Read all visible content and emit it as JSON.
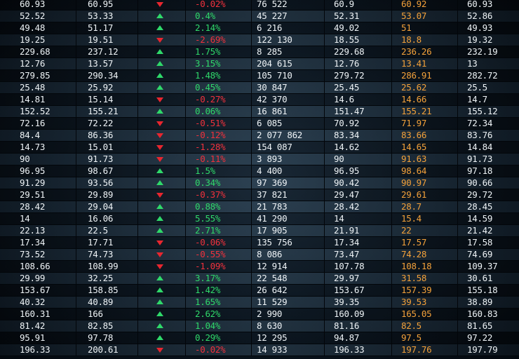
{
  "rows": [
    {
      "c1": "60.93",
      "c2": "60.95",
      "dir": "down",
      "chg": "-0.02%",
      "vol": "76 522",
      "c6": "60.9",
      "c7": "60.92",
      "c8": "60.93"
    },
    {
      "c1": "52.52",
      "c2": "53.33",
      "dir": "up",
      "chg": "0.4%",
      "vol": "45 227",
      "c6": "52.31",
      "c7": "53.07",
      "c8": "52.86"
    },
    {
      "c1": "49.48",
      "c2": "51.17",
      "dir": "up",
      "chg": "2.14%",
      "vol": "6 216",
      "c6": "49.02",
      "c7": "51",
      "c8": "49.93"
    },
    {
      "c1": "19.25",
      "c2": "19.51",
      "dir": "down",
      "chg": "-2.69%",
      "vol": "122 130",
      "c6": "18.55",
      "c7": "18.8",
      "c8": "19.32"
    },
    {
      "c1": "229.68",
      "c2": "237.12",
      "dir": "up",
      "chg": "1.75%",
      "vol": "8 285",
      "c6": "229.68",
      "c7": "236.26",
      "c8": "232.19"
    },
    {
      "c1": "12.76",
      "c2": "13.57",
      "dir": "up",
      "chg": "3.15%",
      "vol": "204 615",
      "c6": "12.76",
      "c7": "13.41",
      "c8": "13"
    },
    {
      "c1": "279.85",
      "c2": "290.34",
      "dir": "up",
      "chg": "1.48%",
      "vol": "105 710",
      "c6": "279.72",
      "c7": "286.91",
      "c8": "282.72"
    },
    {
      "c1": "25.48",
      "c2": "25.92",
      "dir": "up",
      "chg": "0.45%",
      "vol": "30 847",
      "c6": "25.45",
      "c7": "25.62",
      "c8": "25.5"
    },
    {
      "c1": "14.81",
      "c2": "15.14",
      "dir": "down",
      "chg": "-0.27%",
      "vol": "42 370",
      "c6": "14.6",
      "c7": "14.66",
      "c8": "14.7"
    },
    {
      "c1": "152.52",
      "c2": "155.21",
      "dir": "up",
      "chg": "0.06%",
      "vol": "16 861",
      "c6": "151.47",
      "c7": "155.21",
      "c8": "155.12"
    },
    {
      "c1": "72.16",
      "c2": "72.22",
      "dir": "down",
      "chg": "-0.51%",
      "vol": "6 085",
      "c6": "70.92",
      "c7": "71.97",
      "c8": "72.34"
    },
    {
      "c1": "84.4",
      "c2": "86.36",
      "dir": "down",
      "chg": "-0.12%",
      "vol": "2 077 862",
      "c6": "83.34",
      "c7": "83.66",
      "c8": "83.76"
    },
    {
      "c1": "14.73",
      "c2": "15.01",
      "dir": "down",
      "chg": "-1.28%",
      "vol": "154 087",
      "c6": "14.62",
      "c7": "14.65",
      "c8": "14.84"
    },
    {
      "c1": "90",
      "c2": "91.73",
      "dir": "down",
      "chg": "-0.11%",
      "vol": "3 893",
      "c6": "90",
      "c7": "91.63",
      "c8": "91.73"
    },
    {
      "c1": "96.95",
      "c2": "98.67",
      "dir": "up",
      "chg": "1.5%",
      "vol": "4 400",
      "c6": "96.95",
      "c7": "98.64",
      "c8": "97.18"
    },
    {
      "c1": "91.29",
      "c2": "93.56",
      "dir": "up",
      "chg": "0.34%",
      "vol": "97 369",
      "c6": "90.42",
      "c7": "90.97",
      "c8": "90.66"
    },
    {
      "c1": "29.51",
      "c2": "29.89",
      "dir": "down",
      "chg": "-0.37%",
      "vol": "37 821",
      "c6": "29.47",
      "c7": "29.61",
      "c8": "29.72"
    },
    {
      "c1": "28.42",
      "c2": "29.04",
      "dir": "up",
      "chg": "0.88%",
      "vol": "21 783",
      "c6": "28.42",
      "c7": "28.7",
      "c8": "28.45"
    },
    {
      "c1": "14",
      "c2": "16.06",
      "dir": "up",
      "chg": "5.55%",
      "vol": "41 290",
      "c6": "14",
      "c7": "15.4",
      "c8": "14.59"
    },
    {
      "c1": "22.13",
      "c2": "22.5",
      "dir": "up",
      "chg": "2.71%",
      "vol": "17 905",
      "c6": "21.91",
      "c7": "22",
      "c8": "21.42"
    },
    {
      "c1": "17.34",
      "c2": "17.71",
      "dir": "down",
      "chg": "-0.06%",
      "vol": "135 756",
      "c6": "17.34",
      "c7": "17.57",
      "c8": "17.58"
    },
    {
      "c1": "73.52",
      "c2": "74.73",
      "dir": "down",
      "chg": "-0.55%",
      "vol": "8 086",
      "c6": "73.47",
      "c7": "74.28",
      "c8": "74.69"
    },
    {
      "c1": "108.66",
      "c2": "108.99",
      "dir": "down",
      "chg": "-1.09%",
      "vol": "12 914",
      "c6": "107.78",
      "c7": "108.18",
      "c8": "109.37"
    },
    {
      "c1": "29.99",
      "c2": "32.25",
      "dir": "up",
      "chg": "3.17%",
      "vol": "22 548",
      "c6": "29.97",
      "c7": "31.58",
      "c8": "30.61"
    },
    {
      "c1": "153.67",
      "c2": "158.85",
      "dir": "up",
      "chg": "1.42%",
      "vol": "26 642",
      "c6": "153.67",
      "c7": "157.39",
      "c8": "155.18"
    },
    {
      "c1": "40.32",
      "c2": "40.89",
      "dir": "up",
      "chg": "1.65%",
      "vol": "11 529",
      "c6": "39.35",
      "c7": "39.53",
      "c8": "38.89"
    },
    {
      "c1": "160.31",
      "c2": "166",
      "dir": "up",
      "chg": "2.62%",
      "vol": "2 990",
      "c6": "160.09",
      "c7": "165.05",
      "c8": "160.83"
    },
    {
      "c1": "81.42",
      "c2": "82.85",
      "dir": "up",
      "chg": "1.04%",
      "vol": "8 630",
      "c6": "81.16",
      "c7": "82.5",
      "c8": "81.65"
    },
    {
      "c1": "95.91",
      "c2": "97.78",
      "dir": "up",
      "chg": "0.29%",
      "vol": "12 295",
      "c6": "94.87",
      "c7": "97.5",
      "c8": "97.22"
    },
    {
      "c1": "196.33",
      "c2": "200.61",
      "dir": "down",
      "chg": "-0.02%",
      "vol": "14 933",
      "c6": "196.33",
      "c7": "197.76",
      "c8": "197.79"
    }
  ],
  "colors": {
    "text": "#eef3f6",
    "up": "#2fd96a",
    "down": "#f0313c",
    "highlight": "#f3a13a",
    "background": "#0c1620"
  },
  "icons": {
    "up": "triangle-up-icon",
    "down": "triangle-down-icon"
  }
}
